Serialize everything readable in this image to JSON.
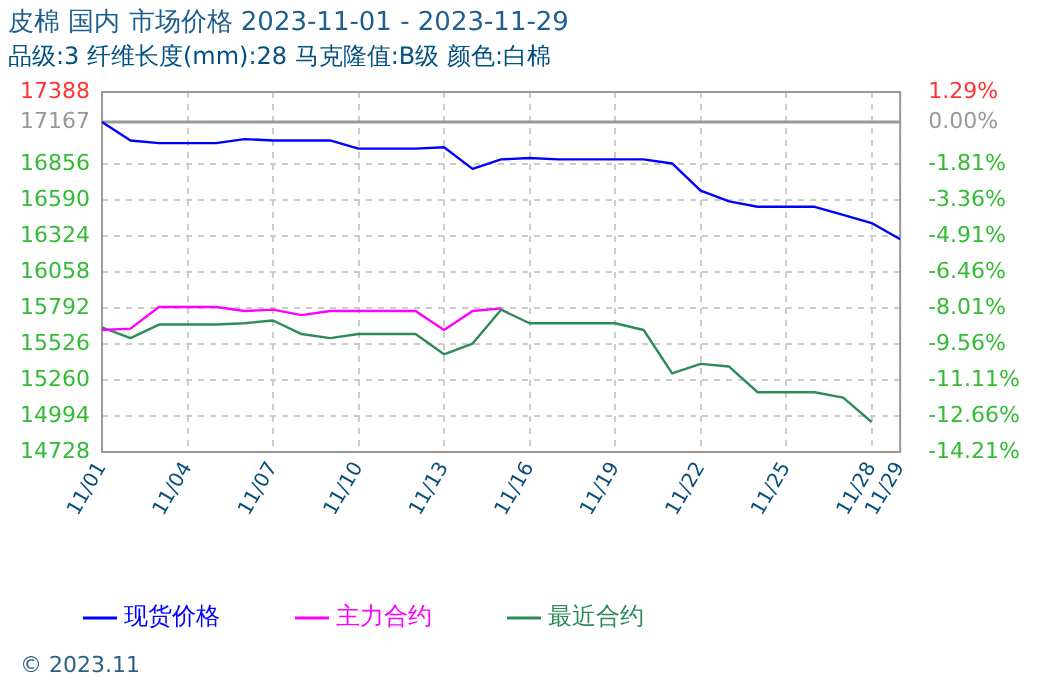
{
  "chart_data": {
    "type": "line",
    "title": "皮棉 国内 市场价格 2023-11-01 - 2023-11-29",
    "subtitle": "品级:3 纤维长度(mm):28 马克隆值:B级 颜色:白棉",
    "x": [
      "2023-11-01",
      "2023-11-02",
      "2023-11-03",
      "2023-11-04",
      "2023-11-05",
      "2023-11-06",
      "2023-11-07",
      "2023-11-08",
      "2023-11-09",
      "2023-11-10",
      "2023-11-11",
      "2023-11-12",
      "2023-11-13",
      "2023-11-14",
      "2023-11-15",
      "2023-11-16",
      "2023-11-17",
      "2023-11-18",
      "2023-11-19",
      "2023-11-20",
      "2023-11-21",
      "2023-11-22",
      "2023-11-23",
      "2023-11-24",
      "2023-11-25",
      "2023-11-26",
      "2023-11-27",
      "2023-11-28",
      "2023-11-29"
    ],
    "series": [
      {
        "name": "现货价格",
        "color": "#0000ff",
        "values": [
          17167,
          17030,
          17010,
          17010,
          17010,
          17040,
          17030,
          17030,
          17030,
          16970,
          16970,
          16970,
          16980,
          16820,
          16890,
          16900,
          16890,
          16890,
          16890,
          16890,
          16860,
          16660,
          16580,
          16540,
          16540,
          16540,
          16480,
          16420,
          16300
        ]
      },
      {
        "name": "主力合约",
        "color": "#ff00ff",
        "values": [
          15630,
          15640,
          15800,
          15800,
          15800,
          15770,
          15780,
          15740,
          15770,
          15770,
          15770,
          15770,
          15630,
          15770,
          15790,
          null,
          null,
          null,
          null,
          null,
          null,
          null,
          null,
          null,
          null,
          null,
          null,
          null,
          null
        ]
      },
      {
        "name": "最近合约",
        "color": "#2e8b57",
        "values": [
          15650,
          15570,
          15670,
          15670,
          15670,
          15680,
          15700,
          15600,
          15570,
          15600,
          15600,
          15600,
          15450,
          15530,
          15780,
          15680,
          15680,
          15680,
          15680,
          15630,
          15310,
          15380,
          15360,
          15170,
          15170,
          15170,
          15130,
          14950,
          null
        ]
      }
    ],
    "xlim": [
      "2023-11-01",
      "2023-11-29"
    ],
    "xticks": [
      {
        "value": "2023-11-01",
        "label": "11/01"
      },
      {
        "value": "2023-11-04",
        "label": "11/04"
      },
      {
        "value": "2023-11-07",
        "label": "11/07"
      },
      {
        "value": "2023-11-10",
        "label": "11/10"
      },
      {
        "value": "2023-11-13",
        "label": "11/13"
      },
      {
        "value": "2023-11-16",
        "label": "11/16"
      },
      {
        "value": "2023-11-19",
        "label": "11/19"
      },
      {
        "value": "2023-11-22",
        "label": "11/22"
      },
      {
        "value": "2023-11-25",
        "label": "11/25"
      },
      {
        "value": "2023-11-28",
        "label": "11/28"
      },
      {
        "value": "2023-11-29",
        "label": "11/29"
      }
    ],
    "ylim": [
      14728,
      17388
    ],
    "yticks": [
      14728,
      14994,
      15260,
      15526,
      15792,
      16058,
      16324,
      16590,
      16856,
      17167,
      17388
    ],
    "y2lim": [
      -14.21,
      1.29
    ],
    "y2ticks": [
      {
        "value": -14.21,
        "label": "-14.21%"
      },
      {
        "value": -12.66,
        "label": "-12.66%"
      },
      {
        "value": -11.11,
        "label": "-11.11%"
      },
      {
        "value": -9.56,
        "label": "-9.56%"
      },
      {
        "value": -8.01,
        "label": "-8.01%"
      },
      {
        "value": -6.46,
        "label": "-6.46%"
      },
      {
        "value": -4.91,
        "label": "-4.91%"
      },
      {
        "value": -3.36,
        "label": "-3.36%"
      },
      {
        "value": -1.81,
        "label": "-1.81%"
      },
      {
        "value": 0,
        "label": "0.00%"
      },
      {
        "value": 1.29,
        "label": "1.29%"
      }
    ],
    "ref_lines": [
      {
        "axis": "y",
        "value": 17167,
        "color": "#999999"
      }
    ],
    "grid": true,
    "legend": "bottom",
    "marker": "none",
    "line_style": "solid",
    "annotations": [
      "© 2023.11"
    ]
  }
}
